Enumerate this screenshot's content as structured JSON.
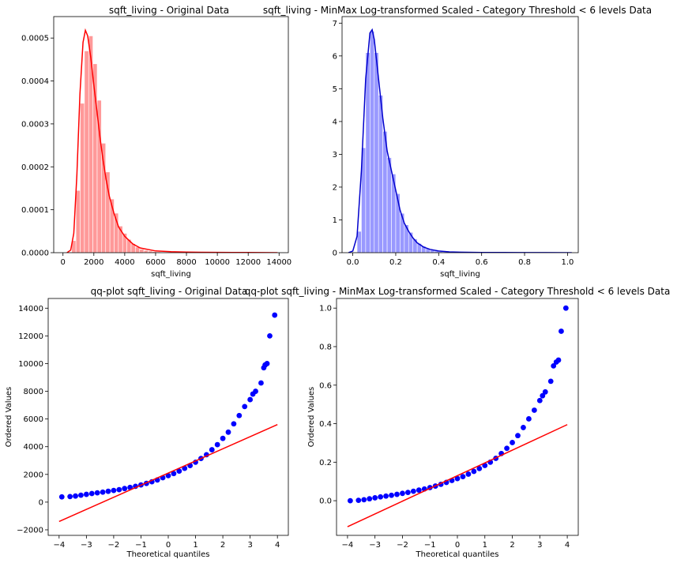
{
  "chart_data": [
    {
      "id": "p1",
      "type": "histogram",
      "title": "sqft_living - Original Data",
      "xlabel": "sqft_living",
      "ylabel": "",
      "xlim": [
        -600,
        14600
      ],
      "ylim": [
        0,
        0.00055
      ],
      "xticks": [
        0,
        2000,
        4000,
        6000,
        8000,
        10000,
        12000,
        14000
      ],
      "xtick_labels": [
        "0",
        "2000",
        "4000",
        "6000",
        "8000",
        "10000",
        "12000",
        "14000"
      ],
      "yticks": [
        0,
        0.0001,
        0.0002,
        0.0003,
        0.0004,
        0.0005
      ],
      "ytick_labels": [
        "0.0000",
        "0.0001",
        "0.0002",
        "0.0003",
        "0.0004",
        "0.0005"
      ],
      "color": "#ff0000",
      "bar_color": "#ff9999",
      "bins": [
        {
          "x0": 290,
          "x1": 565,
          "h": 1.5e-06
        },
        {
          "x0": 565,
          "x1": 840,
          "h": 2.8e-05
        },
        {
          "x0": 840,
          "x1": 1115,
          "h": 0.000145
        },
        {
          "x0": 1115,
          "x1": 1390,
          "h": 0.000348
        },
        {
          "x0": 1390,
          "x1": 1665,
          "h": 0.00047
        },
        {
          "x0": 1665,
          "x1": 1940,
          "h": 0.000505
        },
        {
          "x0": 1940,
          "x1": 2215,
          "h": 0.00044
        },
        {
          "x0": 2215,
          "x1": 2490,
          "h": 0.000355
        },
        {
          "x0": 2490,
          "x1": 2765,
          "h": 0.000255
        },
        {
          "x0": 2765,
          "x1": 3040,
          "h": 0.000188
        },
        {
          "x0": 3040,
          "x1": 3315,
          "h": 0.000125
        },
        {
          "x0": 3315,
          "x1": 3590,
          "h": 9.2e-05
        },
        {
          "x0": 3590,
          "x1": 3865,
          "h": 6.2e-05
        },
        {
          "x0": 3865,
          "x1": 4140,
          "h": 4.5e-05
        },
        {
          "x0": 4140,
          "x1": 4415,
          "h": 3.1e-05
        },
        {
          "x0": 4415,
          "x1": 4690,
          "h": 2.1e-05
        },
        {
          "x0": 4690,
          "x1": 4965,
          "h": 1.3e-05
        },
        {
          "x0": 4965,
          "x1": 5240,
          "h": 8e-06
        },
        {
          "x0": 5240,
          "x1": 5515,
          "h": 5.5e-06
        },
        {
          "x0": 5515,
          "x1": 5790,
          "h": 3.8e-06
        },
        {
          "x0": 5790,
          "x1": 6065,
          "h": 2.6e-06
        },
        {
          "x0": 6065,
          "x1": 6340,
          "h": 1.8e-06
        },
        {
          "x0": 6340,
          "x1": 6615,
          "h": 1.2e-06
        },
        {
          "x0": 6615,
          "x1": 6890,
          "h": 9e-07
        },
        {
          "x0": 6890,
          "x1": 7165,
          "h": 6e-07
        }
      ],
      "kde": [
        [
          260,
          0
        ],
        [
          500,
          6e-06
        ],
        [
          700,
          4.5e-05
        ],
        [
          900,
          0.00018
        ],
        [
          1100,
          0.00037
        ],
        [
          1300,
          0.00049
        ],
        [
          1450,
          0.000518
        ],
        [
          1600,
          0.000505
        ],
        [
          1800,
          0.000455
        ],
        [
          2000,
          0.00039
        ],
        [
          2200,
          0.00033
        ],
        [
          2400,
          0.000268
        ],
        [
          2600,
          0.000215
        ],
        [
          2800,
          0.00017
        ],
        [
          3000,
          0.000132
        ],
        [
          3300,
          9.2e-05
        ],
        [
          3600,
          6e-05
        ],
        [
          4000,
          3.8e-05
        ],
        [
          4500,
          2.1e-05
        ],
        [
          5000,
          1.1e-05
        ],
        [
          6000,
          4e-06
        ],
        [
          7000,
          2.2e-06
        ],
        [
          8000,
          1.4e-06
        ],
        [
          9000,
          1e-06
        ],
        [
          10000,
          7e-07
        ],
        [
          11000,
          5e-07
        ],
        [
          12000,
          3e-07
        ],
        [
          13000,
          2e-07
        ],
        [
          13900,
          0
        ]
      ]
    },
    {
      "id": "p2",
      "type": "histogram",
      "title": "sqft_living - MinMax Log-transformed Scaled - Category Threshold < 6 levels Data",
      "xlabel": "sqft_living",
      "ylabel": "",
      "xlim": [
        -0.05,
        1.05
      ],
      "ylim": [
        0,
        7.2
      ],
      "xticks": [
        0,
        0.2,
        0.4,
        0.6,
        0.8,
        1.0
      ],
      "xtick_labels": [
        "0.0",
        "0.2",
        "0.4",
        "0.6",
        "0.8",
        "1.0"
      ],
      "yticks": [
        0,
        1,
        2,
        3,
        4,
        5,
        6,
        7
      ],
      "ytick_labels": [
        "0",
        "1",
        "2",
        "3",
        "4",
        "5",
        "6",
        "7"
      ],
      "color": "#0000cc",
      "bar_color": "#9999ff",
      "bins": [
        {
          "x0": 0.0,
          "x1": 0.02,
          "h": 0.02
        },
        {
          "x0": 0.02,
          "x1": 0.04,
          "h": 0.65
        },
        {
          "x0": 0.04,
          "x1": 0.06,
          "h": 3.2
        },
        {
          "x0": 0.06,
          "x1": 0.08,
          "h": 6.1
        },
        {
          "x0": 0.08,
          "x1": 0.1,
          "h": 6.75
        },
        {
          "x0": 0.1,
          "x1": 0.12,
          "h": 6.1
        },
        {
          "x0": 0.12,
          "x1": 0.14,
          "h": 4.8
        },
        {
          "x0": 0.14,
          "x1": 0.16,
          "h": 3.7
        },
        {
          "x0": 0.16,
          "x1": 0.18,
          "h": 2.9
        },
        {
          "x0": 0.18,
          "x1": 0.2,
          "h": 2.4
        },
        {
          "x0": 0.2,
          "x1": 0.22,
          "h": 1.8
        },
        {
          "x0": 0.22,
          "x1": 0.24,
          "h": 1.2
        },
        {
          "x0": 0.24,
          "x1": 0.26,
          "h": 0.85
        },
        {
          "x0": 0.26,
          "x1": 0.28,
          "h": 0.62
        },
        {
          "x0": 0.28,
          "x1": 0.3,
          "h": 0.42
        },
        {
          "x0": 0.3,
          "x1": 0.32,
          "h": 0.28
        },
        {
          "x0": 0.32,
          "x1": 0.34,
          "h": 0.2
        },
        {
          "x0": 0.34,
          "x1": 0.36,
          "h": 0.13
        },
        {
          "x0": 0.36,
          "x1": 0.38,
          "h": 0.08
        },
        {
          "x0": 0.38,
          "x1": 0.4,
          "h": 0.05
        },
        {
          "x0": 0.4,
          "x1": 0.42,
          "h": 0.035
        },
        {
          "x0": 0.42,
          "x1": 0.44,
          "h": 0.025
        },
        {
          "x0": 0.44,
          "x1": 0.46,
          "h": 0.018
        }
      ],
      "kde": [
        [
          -0.02,
          0
        ],
        [
          0.0,
          0.05
        ],
        [
          0.02,
          0.5
        ],
        [
          0.04,
          2.5
        ],
        [
          0.06,
          5.3
        ],
        [
          0.08,
          6.7
        ],
        [
          0.09,
          6.8
        ],
        [
          0.1,
          6.5
        ],
        [
          0.12,
          5.3
        ],
        [
          0.14,
          4.1
        ],
        [
          0.16,
          3.1
        ],
        [
          0.18,
          2.5
        ],
        [
          0.2,
          1.9
        ],
        [
          0.22,
          1.3
        ],
        [
          0.24,
          0.9
        ],
        [
          0.26,
          0.65
        ],
        [
          0.28,
          0.45
        ],
        [
          0.3,
          0.3
        ],
        [
          0.33,
          0.17
        ],
        [
          0.36,
          0.1
        ],
        [
          0.4,
          0.05
        ],
        [
          0.45,
          0.025
        ],
        [
          0.5,
          0.015
        ],
        [
          0.6,
          0.008
        ],
        [
          0.7,
          0.005
        ],
        [
          0.8,
          0.003
        ],
        [
          0.9,
          0.002
        ],
        [
          1.0,
          0.001
        ],
        [
          1.02,
          0
        ]
      ]
    },
    {
      "id": "p3",
      "type": "scatter",
      "title": "qq-plot sqft_living - Original Data",
      "xlabel": "Theoretical quantiles",
      "ylabel": "Ordered Values",
      "xlim": [
        -4.4,
        4.4
      ],
      "ylim": [
        -2400,
        14700
      ],
      "xticks": [
        -4,
        -3,
        -2,
        -1,
        0,
        1,
        2,
        3,
        4
      ],
      "xtick_labels": [
        "−4",
        "−3",
        "−2",
        "−1",
        "0",
        "1",
        "2",
        "3",
        "4"
      ],
      "yticks": [
        -2000,
        0,
        2000,
        4000,
        6000,
        8000,
        10000,
        12000,
        14000
      ],
      "ytick_labels": [
        "−2000",
        "0",
        "2000",
        "4000",
        "6000",
        "8000",
        "10000",
        "12000",
        "14000"
      ],
      "point_color": "#0000ff",
      "line_color": "#ff0000",
      "fit_line": [
        [
          -4,
          -1400
        ],
        [
          4,
          5600
        ]
      ],
      "points": [
        [
          -3.9,
          380
        ],
        [
          -3.6,
          400
        ],
        [
          -3.4,
          440
        ],
        [
          -3.2,
          500
        ],
        [
          -3.0,
          560
        ],
        [
          -2.8,
          620
        ],
        [
          -2.6,
          670
        ],
        [
          -2.4,
          720
        ],
        [
          -2.2,
          780
        ],
        [
          -2.0,
          840
        ],
        [
          -1.8,
          900
        ],
        [
          -1.6,
          980
        ],
        [
          -1.4,
          1060
        ],
        [
          -1.2,
          1140
        ],
        [
          -1.0,
          1240
        ],
        [
          -0.8,
          1350
        ],
        [
          -0.6,
          1470
        ],
        [
          -0.4,
          1600
        ],
        [
          -0.2,
          1760
        ],
        [
          0.0,
          1910
        ],
        [
          0.2,
          2060
        ],
        [
          0.4,
          2240
        ],
        [
          0.6,
          2440
        ],
        [
          0.8,
          2640
        ],
        [
          1.0,
          2880
        ],
        [
          1.2,
          3150
        ],
        [
          1.4,
          3420
        ],
        [
          1.6,
          3780
        ],
        [
          1.8,
          4150
        ],
        [
          2.0,
          4600
        ],
        [
          2.2,
          5050
        ],
        [
          2.4,
          5650
        ],
        [
          2.6,
          6250
        ],
        [
          2.8,
          6900
        ],
        [
          3.0,
          7400
        ],
        [
          3.1,
          7800
        ],
        [
          3.2,
          8000
        ],
        [
          3.4,
          8600
        ],
        [
          3.5,
          9700
        ],
        [
          3.55,
          9900
        ],
        [
          3.62,
          10000
        ],
        [
          3.72,
          12000
        ],
        [
          3.9,
          13500
        ]
      ]
    },
    {
      "id": "p4",
      "type": "scatter",
      "title": "qq-plot sqft_living - MinMax Log-transformed Scaled - Category Threshold < 6 levels Data",
      "xlabel": "Theoretical quantiles",
      "ylabel": "Ordered Values",
      "xlim": [
        -4.4,
        4.4
      ],
      "ylim": [
        -0.18,
        1.05
      ],
      "xticks": [
        -4,
        -3,
        -2,
        -1,
        0,
        1,
        2,
        3,
        4
      ],
      "xtick_labels": [
        "−4",
        "−3",
        "−2",
        "−1",
        "0",
        "1",
        "2",
        "3",
        "4"
      ],
      "yticks": [
        0,
        0.2,
        0.4,
        0.6,
        0.8,
        1.0
      ],
      "ytick_labels": [
        "0.0",
        "0.2",
        "0.4",
        "0.6",
        "0.8",
        "1.0"
      ],
      "point_color": "#0000ff",
      "line_color": "#ff0000",
      "fit_line": [
        [
          -4,
          -0.135
        ],
        [
          4,
          0.395
        ]
      ],
      "points": [
        [
          -3.9,
          0.0
        ],
        [
          -3.6,
          0.002
        ],
        [
          -3.4,
          0.005
        ],
        [
          -3.2,
          0.01
        ],
        [
          -3.0,
          0.015
        ],
        [
          -2.8,
          0.02
        ],
        [
          -2.6,
          0.024
        ],
        [
          -2.4,
          0.028
        ],
        [
          -2.2,
          0.033
        ],
        [
          -2.0,
          0.038
        ],
        [
          -1.8,
          0.043
        ],
        [
          -1.6,
          0.049
        ],
        [
          -1.4,
          0.055
        ],
        [
          -1.2,
          0.061
        ],
        [
          -1.0,
          0.068
        ],
        [
          -0.8,
          0.076
        ],
        [
          -0.6,
          0.085
        ],
        [
          -0.4,
          0.095
        ],
        [
          -0.2,
          0.105
        ],
        [
          0.0,
          0.115
        ],
        [
          0.2,
          0.125
        ],
        [
          0.4,
          0.138
        ],
        [
          0.6,
          0.152
        ],
        [
          0.8,
          0.167
        ],
        [
          1.0,
          0.183
        ],
        [
          1.2,
          0.2
        ],
        [
          1.4,
          0.22
        ],
        [
          1.6,
          0.245
        ],
        [
          1.8,
          0.272
        ],
        [
          2.0,
          0.302
        ],
        [
          2.2,
          0.338
        ],
        [
          2.4,
          0.38
        ],
        [
          2.6,
          0.425
        ],
        [
          2.8,
          0.47
        ],
        [
          3.0,
          0.52
        ],
        [
          3.1,
          0.545
        ],
        [
          3.2,
          0.565
        ],
        [
          3.4,
          0.62
        ],
        [
          3.5,
          0.7
        ],
        [
          3.6,
          0.72
        ],
        [
          3.68,
          0.73
        ],
        [
          3.78,
          0.88
        ],
        [
          3.95,
          1.0
        ]
      ]
    }
  ]
}
